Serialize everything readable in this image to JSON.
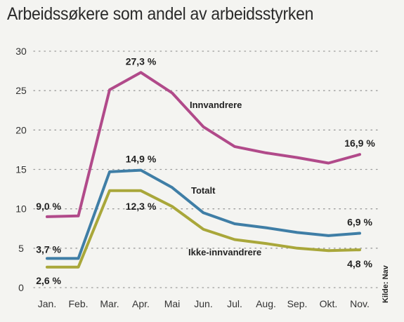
{
  "title": "Arbeidssøkere som andel av arbeidsstyrken",
  "source": "Kilde: Nav",
  "chart_data": {
    "type": "line",
    "title": "Arbeidssøkere som andel av arbeidsstyrken",
    "xlabel": "",
    "ylabel": "",
    "categories": [
      "Jan.",
      "Feb.",
      "Mar.",
      "Apr.",
      "Mai",
      "Jun.",
      "Jul.",
      "Aug.",
      "Sep.",
      "Okt.",
      "Nov."
    ],
    "ylim": [
      0,
      30
    ],
    "yticks": [
      0,
      5,
      10,
      15,
      20,
      25,
      30
    ],
    "grid": "horizontal dotted",
    "series": [
      {
        "name": "Innvandrere",
        "color": "#b14a8a",
        "values": [
          9.0,
          9.1,
          25.1,
          27.3,
          24.7,
          20.4,
          17.9,
          17.1,
          16.5,
          15.8,
          16.9
        ]
      },
      {
        "name": "Totalt",
        "color": "#3f7ea6",
        "values": [
          3.7,
          3.7,
          14.7,
          14.9,
          12.7,
          9.5,
          8.1,
          7.6,
          7.0,
          6.6,
          6.9
        ]
      },
      {
        "name": "Ikke-innvandrere",
        "color": "#a9a73a",
        "values": [
          2.6,
          2.6,
          12.3,
          12.3,
          10.3,
          7.4,
          6.1,
          5.6,
          5.0,
          4.7,
          4.8
        ]
      }
    ],
    "annotations": [
      {
        "text": "9,0 %",
        "series": 0,
        "index": 0
      },
      {
        "text": "27,3 %",
        "series": 0,
        "index": 3
      },
      {
        "text": "16,9 %",
        "series": 0,
        "index": 10
      },
      {
        "text": "3,7 %",
        "series": 1,
        "index": 0
      },
      {
        "text": "14,9 %",
        "series": 1,
        "index": 3
      },
      {
        "text": "6,9 %",
        "series": 1,
        "index": 10
      },
      {
        "text": "2,6 %",
        "series": 2,
        "index": 0
      },
      {
        "text": "12,3 %",
        "series": 2,
        "index": 3
      },
      {
        "text": "4,8 %",
        "series": 2,
        "index": 10
      }
    ]
  }
}
